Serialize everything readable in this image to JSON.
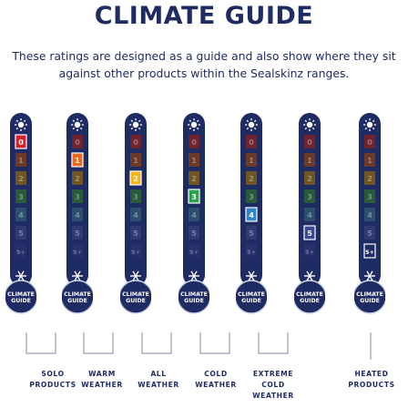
{
  "title": "CLIMATE GUIDE",
  "intro": "These ratings are designed as a guide and also show where they sit against other products within the Sealskinz ranges.",
  "scale_labels": [
    "0",
    "1",
    "2",
    "3",
    "4",
    "5",
    "5+"
  ],
  "bulb_text": "CLIMATE GUIDE",
  "colors": {
    "navy": "#1f2b63",
    "level_0": "#d8202b",
    "level_1": "#ec6a1c",
    "level_2": "#f6b417",
    "level_3": "#2ca24e",
    "level_4": "#2d86c8",
    "level_5": "#3d4695",
    "level_5plus": "#1f2b63"
  },
  "thermometers": [
    {
      "active": "0"
    },
    {
      "active": "1"
    },
    {
      "active": "2"
    },
    {
      "active": "3"
    },
    {
      "active": "4"
    },
    {
      "active": "5"
    },
    {
      "active": "5+"
    }
  ],
  "groups": [
    {
      "label_line1": "SOLO",
      "label_line2": "PRODUCTS",
      "label_line3": ""
    },
    {
      "label_line1": "WARM",
      "label_line2": "WEATHER",
      "label_line3": ""
    },
    {
      "label_line1": "ALL",
      "label_line2": "WEATHER",
      "label_line3": ""
    },
    {
      "label_line1": "COLD",
      "label_line2": "WEATHER",
      "label_line3": ""
    },
    {
      "label_line1": "EXTREME",
      "label_line2": "COLD",
      "label_line3": "WEATHER"
    },
    {
      "label_line1": "HEATED",
      "label_line2": "PRODUCTS",
      "label_line3": ""
    }
  ]
}
